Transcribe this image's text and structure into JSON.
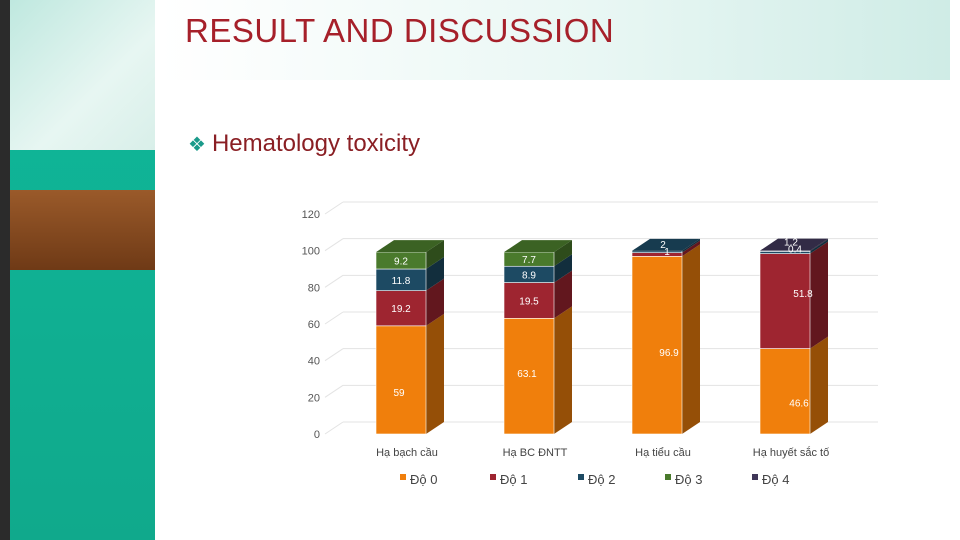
{
  "slide": {
    "title": "RESULT AND DISCUSSION",
    "subtitle": "Hematology toxicity",
    "bullet_icon": "diamond-bullet-icon"
  },
  "colors": {
    "grade0": "#f07f0c",
    "grade1": "#9e2530",
    "grade2": "#1d4a63",
    "grade3": "#4a7a2c",
    "grade4": "#3f3658",
    "title": "#a6202a"
  },
  "chart_data": {
    "type": "bar",
    "stacked": true,
    "style": "3d-stacked-column",
    "categories": [
      "Hạ bạch cầu",
      "Hạ BC ĐNTT",
      "Hạ tiểu cầu",
      "Hạ huyết sắc tố"
    ],
    "series": [
      {
        "name": "Độ 0",
        "values": [
          59,
          63.1,
          96.9,
          46.6
        ]
      },
      {
        "name": "Độ 1",
        "values": [
          19.2,
          19.5,
          2.0,
          51.8
        ]
      },
      {
        "name": "Độ 2",
        "values": [
          11.8,
          8.9,
          1.0,
          1.2
        ]
      },
      {
        "name": "Độ 3",
        "values": [
          9.2,
          7.7,
          0,
          0
        ]
      },
      {
        "name": "Độ 4",
        "values": [
          0,
          0,
          0,
          0.4
        ]
      }
    ],
    "data_labels": [
      [
        "59",
        "19.2",
        "11.8",
        "9.2",
        ""
      ],
      [
        "63.1",
        "19.5",
        "8.9",
        "7.7",
        ""
      ],
      [
        "96.9",
        "2",
        "1",
        "",
        ""
      ],
      [
        "46.6",
        "51.8",
        "1.2",
        "",
        "0.4"
      ]
    ],
    "ylim": [
      0,
      120
    ],
    "yticks": [
      "0",
      "20",
      "40",
      "60",
      "80",
      "100",
      "120"
    ],
    "grid": true,
    "legend": "bottom"
  }
}
